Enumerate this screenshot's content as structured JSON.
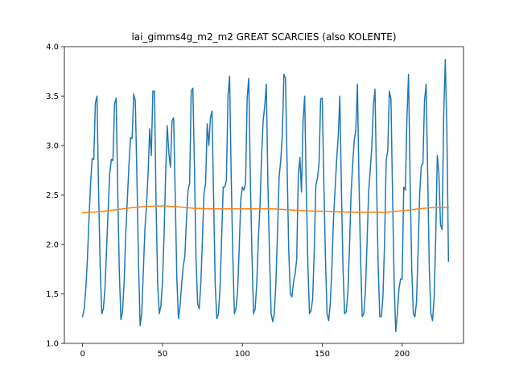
{
  "chart_data": {
    "type": "line",
    "title": "lai_gimms4g_m2_m2 GREAT SCARCIES (also KOLENTE)",
    "xlabel": "",
    "ylabel": "",
    "xlim": [
      -11.4,
      238.4
    ],
    "ylim": [
      1.0,
      4.0
    ],
    "xticks": [
      0,
      50,
      100,
      150,
      200
    ],
    "yticks": [
      1.0,
      1.5,
      2.0,
      2.5,
      3.0,
      3.5,
      4.0
    ],
    "ytick_labels": [
      "1.0",
      "1.5",
      "2.0",
      "2.5",
      "3.0",
      "3.5",
      "4.0"
    ],
    "grid": false,
    "series": [
      {
        "color": "#1f77b4",
        "keypoints": [
          [
            0,
            1.27
          ],
          [
            1,
            1.35
          ],
          [
            2,
            1.55
          ],
          [
            3,
            1.85
          ],
          [
            4,
            2.25
          ],
          [
            5,
            2.62
          ],
          [
            6,
            2.87
          ],
          [
            7,
            2.86
          ],
          [
            8,
            3.43
          ],
          [
            9,
            3.5
          ],
          [
            10,
            2.55
          ],
          [
            11,
            1.78
          ],
          [
            12,
            1.3
          ],
          [
            13,
            1.35
          ],
          [
            14,
            1.55
          ],
          [
            15,
            1.95
          ],
          [
            16,
            2.35
          ],
          [
            17,
            2.72
          ],
          [
            18,
            2.86
          ],
          [
            19,
            2.85
          ],
          [
            20,
            3.42
          ],
          [
            21,
            3.48
          ],
          [
            22,
            2.55
          ],
          [
            23,
            1.72
          ],
          [
            24,
            1.24
          ],
          [
            25,
            1.32
          ],
          [
            26,
            1.62
          ],
          [
            27,
            2.1
          ],
          [
            28,
            2.45
          ],
          [
            29,
            2.8
          ],
          [
            30,
            3.08
          ],
          [
            31,
            3.07
          ],
          [
            32,
            3.52
          ],
          [
            33,
            3.45
          ],
          [
            34,
            2.68
          ],
          [
            35,
            1.82
          ],
          [
            36,
            1.18
          ],
          [
            37,
            1.3
          ],
          [
            38,
            1.72
          ],
          [
            39,
            2.15
          ],
          [
            40,
            2.4
          ],
          [
            41,
            2.72
          ],
          [
            42,
            3.17
          ],
          [
            43,
            2.9
          ],
          [
            44,
            3.55
          ],
          [
            45,
            3.55
          ],
          [
            46,
            2.4
          ],
          [
            47,
            1.6
          ],
          [
            48,
            1.3
          ],
          [
            49,
            1.38
          ],
          [
            50,
            1.62
          ],
          [
            51,
            2.1
          ],
          [
            52,
            2.72
          ],
          [
            53,
            3.2
          ],
          [
            54,
            2.92
          ],
          [
            55,
            2.78
          ],
          [
            56,
            3.25
          ],
          [
            57,
            3.28
          ],
          [
            58,
            2.48
          ],
          [
            59,
            1.65
          ],
          [
            60,
            1.25
          ],
          [
            61,
            1.38
          ],
          [
            62,
            1.6
          ],
          [
            63,
            1.78
          ],
          [
            64,
            1.88
          ],
          [
            65,
            2.25
          ],
          [
            66,
            2.55
          ],
          [
            67,
            2.62
          ],
          [
            68,
            3.55
          ],
          [
            69,
            3.58
          ],
          [
            70,
            2.8
          ],
          [
            71,
            1.85
          ],
          [
            72,
            1.4
          ],
          [
            73,
            1.35
          ],
          [
            74,
            1.6
          ],
          [
            75,
            2.05
          ],
          [
            76,
            2.52
          ],
          [
            77,
            2.62
          ],
          [
            78,
            3.22
          ],
          [
            79,
            3.0
          ],
          [
            80,
            3.28
          ],
          [
            81,
            3.35
          ],
          [
            82,
            2.48
          ],
          [
            83,
            1.6
          ],
          [
            84,
            1.25
          ],
          [
            85,
            1.3
          ],
          [
            86,
            1.55
          ],
          [
            87,
            2.05
          ],
          [
            88,
            2.58
          ],
          [
            89,
            2.58
          ],
          [
            90,
            2.65
          ],
          [
            91,
            3.5
          ],
          [
            92,
            3.7
          ],
          [
            93,
            2.7
          ],
          [
            94,
            1.9
          ],
          [
            95,
            1.3
          ],
          [
            96,
            1.35
          ],
          [
            97,
            1.52
          ],
          [
            98,
            1.95
          ],
          [
            99,
            2.45
          ],
          [
            100,
            2.58
          ],
          [
            101,
            2.55
          ],
          [
            102,
            2.62
          ],
          [
            103,
            3.48
          ],
          [
            104,
            3.68
          ],
          [
            105,
            2.65
          ],
          [
            106,
            1.9
          ],
          [
            107,
            1.3
          ],
          [
            108,
            1.35
          ],
          [
            109,
            1.6
          ],
          [
            110,
            2.05
          ],
          [
            111,
            2.38
          ],
          [
            112,
            2.88
          ],
          [
            113,
            3.25
          ],
          [
            114,
            3.4
          ],
          [
            115,
            3.62
          ],
          [
            116,
            2.6
          ],
          [
            117,
            1.88
          ],
          [
            118,
            1.3
          ],
          [
            119,
            1.22
          ],
          [
            120,
            1.3
          ],
          [
            121,
            1.62
          ],
          [
            122,
            2.12
          ],
          [
            123,
            2.68
          ],
          [
            124,
            2.85
          ],
          [
            125,
            3.1
          ],
          [
            126,
            3.72
          ],
          [
            127,
            3.68
          ],
          [
            128,
            2.8
          ],
          [
            129,
            1.95
          ],
          [
            130,
            1.5
          ],
          [
            131,
            1.47
          ],
          [
            132,
            1.62
          ],
          [
            133,
            1.7
          ],
          [
            134,
            1.85
          ],
          [
            135,
            2.7
          ],
          [
            136,
            2.88
          ],
          [
            137,
            2.53
          ],
          [
            138,
            3.25
          ],
          [
            139,
            3.5
          ],
          [
            140,
            2.55
          ],
          [
            141,
            1.8
          ],
          [
            142,
            1.3
          ],
          [
            143,
            1.33
          ],
          [
            144,
            1.45
          ],
          [
            145,
            1.95
          ],
          [
            146,
            2.6
          ],
          [
            147,
            2.67
          ],
          [
            148,
            2.82
          ],
          [
            149,
            3.47
          ],
          [
            150,
            3.48
          ],
          [
            151,
            2.62
          ],
          [
            152,
            1.85
          ],
          [
            153,
            1.3
          ],
          [
            154,
            1.23
          ],
          [
            155,
            1.4
          ],
          [
            156,
            1.75
          ],
          [
            157,
            2.25
          ],
          [
            158,
            2.55
          ],
          [
            159,
            2.85
          ],
          [
            160,
            3.1
          ],
          [
            161,
            3.5
          ],
          [
            162,
            2.55
          ],
          [
            163,
            1.75
          ],
          [
            164,
            1.3
          ],
          [
            165,
            1.32
          ],
          [
            166,
            1.5
          ],
          [
            167,
            1.95
          ],
          [
            168,
            2.5
          ],
          [
            169,
            2.8
          ],
          [
            170,
            3.05
          ],
          [
            171,
            3.15
          ],
          [
            172,
            3.62
          ],
          [
            173,
            2.62
          ],
          [
            174,
            1.85
          ],
          [
            175,
            1.27
          ],
          [
            176,
            1.3
          ],
          [
            177,
            1.52
          ],
          [
            178,
            2.0
          ],
          [
            179,
            2.52
          ],
          [
            180,
            2.75
          ],
          [
            181,
            2.98
          ],
          [
            182,
            3.4
          ],
          [
            183,
            3.57
          ],
          [
            184,
            2.62
          ],
          [
            185,
            1.78
          ],
          [
            186,
            1.27
          ],
          [
            187,
            1.27
          ],
          [
            188,
            1.48
          ],
          [
            189,
            2.02
          ],
          [
            190,
            2.85
          ],
          [
            191,
            2.95
          ],
          [
            192,
            3.55
          ],
          [
            193,
            3.47
          ],
          [
            194,
            2.5
          ],
          [
            195,
            1.6
          ],
          [
            196,
            1.12
          ],
          [
            197,
            1.3
          ],
          [
            198,
            1.55
          ],
          [
            199,
            1.65
          ],
          [
            200,
            1.65
          ],
          [
            201,
            2.58
          ],
          [
            202,
            2.55
          ],
          [
            203,
            3.28
          ],
          [
            204,
            3.72
          ],
          [
            205,
            2.62
          ],
          [
            206,
            1.75
          ],
          [
            207,
            1.3
          ],
          [
            208,
            1.27
          ],
          [
            209,
            1.42
          ],
          [
            210,
            1.95
          ],
          [
            211,
            2.52
          ],
          [
            212,
            2.8
          ],
          [
            213,
            2.82
          ],
          [
            214,
            3.45
          ],
          [
            215,
            3.62
          ],
          [
            216,
            2.7
          ],
          [
            217,
            1.75
          ],
          [
            218,
            1.3
          ],
          [
            219,
            1.23
          ],
          [
            220,
            1.45
          ],
          [
            221,
            2.05
          ],
          [
            222,
            2.9
          ],
          [
            223,
            2.72
          ],
          [
            224,
            2.2
          ],
          [
            225,
            2.15
          ],
          [
            226,
            3.3
          ],
          [
            227,
            3.87
          ],
          [
            228,
            3.15
          ],
          [
            229,
            1.83
          ]
        ]
      },
      {
        "color": "#ff7f0e",
        "keypoints": [
          [
            0,
            2.32
          ],
          [
            10,
            2.33
          ],
          [
            20,
            2.35
          ],
          [
            30,
            2.37
          ],
          [
            40,
            2.385
          ],
          [
            50,
            2.39
          ],
          [
            60,
            2.38
          ],
          [
            70,
            2.365
          ],
          [
            80,
            2.36
          ],
          [
            90,
            2.36
          ],
          [
            100,
            2.36
          ],
          [
            110,
            2.36
          ],
          [
            120,
            2.36
          ],
          [
            130,
            2.35
          ],
          [
            140,
            2.34
          ],
          [
            150,
            2.335
          ],
          [
            160,
            2.33
          ],
          [
            170,
            2.325
          ],
          [
            180,
            2.325
          ],
          [
            190,
            2.325
          ],
          [
            200,
            2.34
          ],
          [
            210,
            2.36
          ],
          [
            220,
            2.375
          ],
          [
            229,
            2.375
          ]
        ]
      }
    ]
  }
}
